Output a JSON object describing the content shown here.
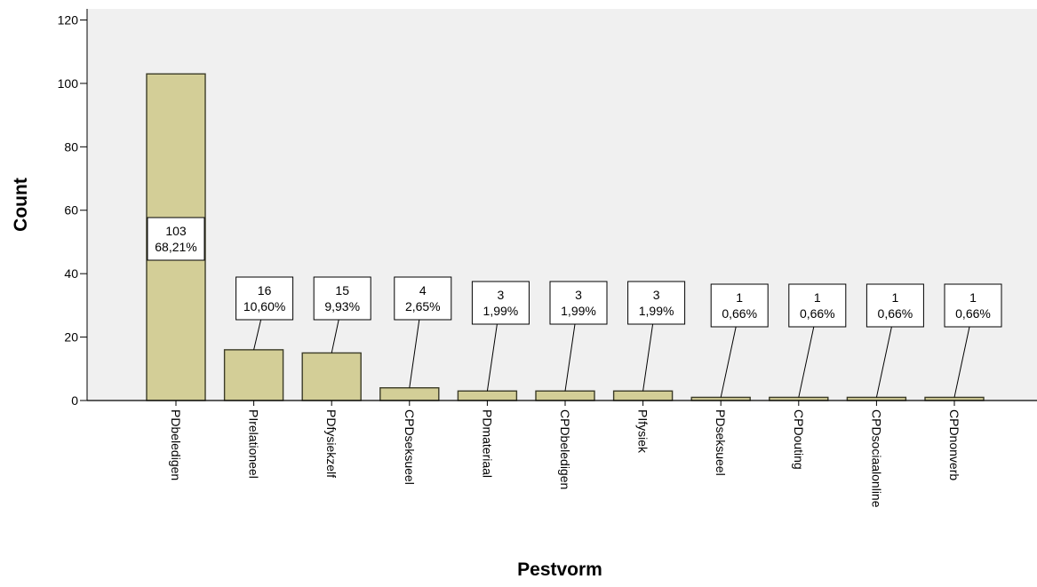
{
  "chart_data": {
    "type": "bar",
    "xlabel": "Pestvorm",
    "ylabel": "Count",
    "ylim": [
      0,
      120
    ],
    "yticks": [
      0,
      20,
      40,
      60,
      80,
      100,
      120
    ],
    "grid": false,
    "colors": {
      "plot_bg": "#f0f0f0",
      "bar_fill": "#d3ce97",
      "bar_stroke": "#3c3c28"
    },
    "categories": [
      "PDbeledigen",
      "PIrelationeel",
      "PDfysiekzelf",
      "CPDseksueel",
      "PDmateriaal",
      "CPDbeledigen",
      "PIfysiek",
      "PDseksueel",
      "CPDouting",
      "CPDsociaalonline",
      "CPDnonverb"
    ],
    "values": [
      103,
      16,
      15,
      4,
      3,
      3,
      3,
      1,
      1,
      1,
      1
    ],
    "data_labels": [
      {
        "count": "103",
        "percent": "68,21%"
      },
      {
        "count": "16",
        "percent": "10,60%"
      },
      {
        "count": "15",
        "percent": "9,93%"
      },
      {
        "count": "4",
        "percent": "2,65%"
      },
      {
        "count": "3",
        "percent": "1,99%"
      },
      {
        "count": "3",
        "percent": "1,99%"
      },
      {
        "count": "3",
        "percent": "1,99%"
      },
      {
        "count": "1",
        "percent": "0,66%"
      },
      {
        "count": "1",
        "percent": "0,66%"
      },
      {
        "count": "1",
        "percent": "0,66%"
      },
      {
        "count": "1",
        "percent": "0,66%"
      }
    ]
  }
}
